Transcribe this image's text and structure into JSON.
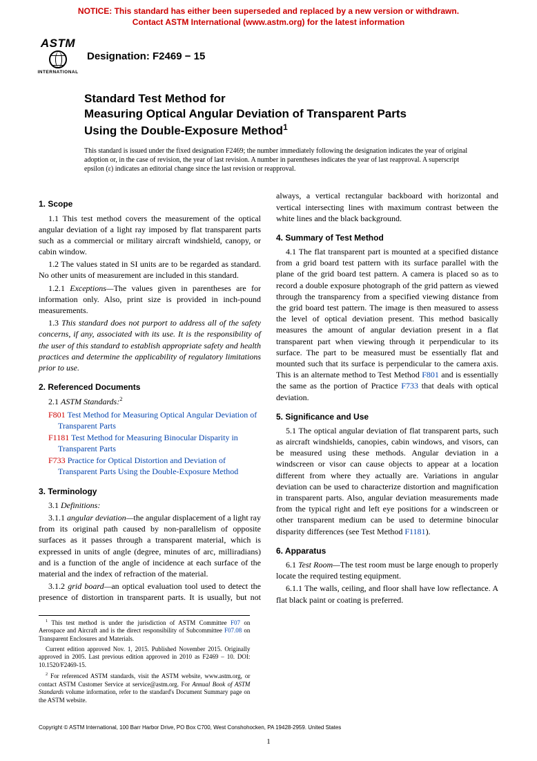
{
  "notice": {
    "line1": "NOTICE: This standard has either been superseded and replaced by a new version or withdrawn.",
    "line2": "Contact ASTM International (www.astm.org) for the latest information",
    "color": "#cc0000"
  },
  "logo": {
    "top": "ASTM",
    "bottom": "INTERNATIONAL"
  },
  "designation": {
    "label": "Designation: ",
    "code": "F2469 − 15"
  },
  "title": {
    "line1": "Standard Test Method for",
    "line2": "Measuring Optical Angular Deviation of Transparent Parts",
    "line3": "Using the Double-Exposure Method",
    "sup": "1"
  },
  "issuance": "This standard is issued under the fixed designation F2469; the number immediately following the designation indicates the year of original adoption or, in the case of revision, the year of last revision. A number in parentheses indicates the year of last reapproval. A superscript epsilon (ε) indicates an editorial change since the last revision or reapproval.",
  "sections": {
    "scope": {
      "head": "1. Scope",
      "p1": "1.1 This test method covers the measurement of the optical angular deviation of a light ray imposed by flat transparent parts such as a commercial or military aircraft windshield, canopy, or cabin window.",
      "p2": "1.2 The values stated in SI units are to be regarded as standard. No other units of measurement are included in this standard.",
      "p2_1_lead": "1.2.1 ",
      "p2_1_em": "Exceptions—",
      "p2_1_rest": "The values given in parentheses are for information only. Also, print size is provided in inch-pound measurements.",
      "p3_lead": "1.3 ",
      "p3_em": "This standard does not purport to address all of the safety concerns, if any, associated with its use. It is the responsibility of the user of this standard to establish appropriate safety and health practices and determine the applicability of regulatory limitations prior to use."
    },
    "refdocs": {
      "head": "2. Referenced Documents",
      "p1_lead": "2.1 ",
      "p1_em": "ASTM Standards:",
      "p1_sup": "2",
      "r1_code": "F801",
      "r1_text": " Test Method for Measuring Optical Angular Deviation of Transparent Parts",
      "r2_code": "F1181",
      "r2_text": " Test Method for Measuring Binocular Disparity in Transparent Parts",
      "r3_code": "F733",
      "r3_text": " Practice for Optical Distortion and Deviation of Transparent Parts Using the Double-Exposure Method"
    },
    "terms": {
      "head": "3. Terminology",
      "p1_lead": "3.1 ",
      "p1_em": "Definitions:",
      "p1_1_lead": "3.1.1 ",
      "p1_1_em": "angular deviation—",
      "p1_1_rest": "the angular displacement of a light ray from its original path caused by non-parallelism of opposite surfaces as it passes through a transparent material, which is expressed in units of angle (degree, minutes of arc, milliradians) and is a function of the angle of incidence at each surface of the material and the index of refraction of the material.",
      "p1_2_lead": "3.1.2 ",
      "p1_2_em": "grid board—",
      "p1_2_rest": "an optical evaluation tool used to detect the presence of distortion in transparent parts. It is usually, but not always, a vertical rectangular backboard with horizontal and vertical intersecting lines with maximum contrast between the white lines and the black background."
    },
    "summary": {
      "head": "4. Summary of Test Method",
      "p1_a": "4.1 The flat transparent part is mounted at a specified distance from a grid board test pattern with its surface parallel with the plane of the grid board test pattern. A camera is placed so as to record a double exposure photograph of the grid pattern as viewed through the transparency from a specified viewing distance from the grid board test pattern. The image is then measured to assess the level of optical deviation present. This method basically measures the amount of angular deviation present in a flat transparent part when viewing through it perpendicular to its surface. The part to be measured must be essentially flat and mounted such that its surface is perpendicular to the camera axis. This is an alternate method to Test Method ",
      "p1_link1": "F801",
      "p1_b": " and is essentially the same as the portion of Practice ",
      "p1_link2": "F733",
      "p1_c": " that deals with optical deviation."
    },
    "sig": {
      "head": "5. Significance and Use",
      "p1_a": "5.1 The optical angular deviation of flat transparent parts, such as aircraft windshields, canopies, cabin windows, and visors, can be measured using these methods. Angular deviation in a windscreen or visor can cause objects to appear at a location different from where they actually are. Variations in angular deviation can be used to characterize distortion and magnification in transparent parts. Also, angular deviation measurements made from the typical right and left eye positions for a windscreen or other transparent medium can be used to determine binocular disparity differences (see Test Method ",
      "p1_link": "F1181",
      "p1_b": ")."
    },
    "app": {
      "head": "6. Apparatus",
      "p1_lead": "6.1 ",
      "p1_em": "Test Room—",
      "p1_rest": "The test room must be large enough to properly locate the required testing equipment.",
      "p1_1": "6.1.1 The walls, ceiling, and floor shall have low reflectance. A flat black paint or coating is preferred."
    }
  },
  "footnotes": {
    "f1_a": " This test method is under the jurisdiction of ASTM Committee ",
    "f1_l1": "F07",
    "f1_b": " on Aerospace and Aircraft and is the direct responsibility of Subcommittee ",
    "f1_l2": "F07.08",
    "f1_c": " on Transparent Enclosures and Materials.",
    "f1_p2": "Current edition approved Nov. 1, 2015. Published November 2015. Originally approved in 2005. Last previous edition approved in 2010 as F2469 – 10. DOI: 10.1520/F2469-15.",
    "f2_a": " For referenced ASTM standards, visit the ASTM website, www.astm.org, or contact ASTM Customer Service at service@astm.org. For ",
    "f2_em": "Annual Book of ASTM Standards",
    "f2_b": " volume information, refer to the standard's Document Summary page on the ASTM website."
  },
  "copyright": "Copyright © ASTM International, 100 Barr Harbor Drive, PO Box C700, West Conshohocken, PA 19428-2959. United States",
  "pagenum": "1",
  "colors": {
    "notice": "#cc0000",
    "link": "#0645ad",
    "refcode": "#cc0000"
  }
}
